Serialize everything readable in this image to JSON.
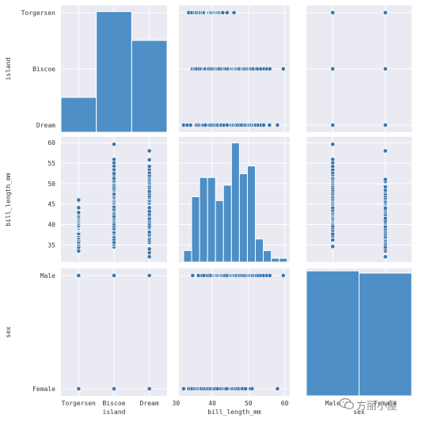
{
  "chart_data": {
    "type": "pairplot",
    "variables": [
      "island",
      "bill_length_mm",
      "sex"
    ],
    "categories": {
      "island": [
        "Torgersen",
        "Biscoe",
        "Dream"
      ],
      "sex": [
        "Male",
        "Female"
      ]
    },
    "axis_labels": {
      "island": "island",
      "bill_length_mm": "bill_length_mm",
      "sex": "sex"
    },
    "bill_length_ticks": [
      35,
      40,
      45,
      50,
      55,
      60
    ],
    "bill_length_x_ticks": [
      30,
      40,
      50,
      60
    ],
    "bill_length_range": [
      30.8,
      61.4
    ],
    "colors": {
      "point": "#3a75ad",
      "bar": "#4d8fc6",
      "bar_edge": "#ffffff",
      "panel_bg": "#eaeaf2",
      "grid": "#ffffff",
      "text": "#333333"
    },
    "island_hist": [
      {
        "category": "Torgersen",
        "count": 47
      },
      {
        "category": "Biscoe",
        "count": 163
      },
      {
        "category": "Dream",
        "count": 124
      }
    ],
    "sex_hist": [
      {
        "category": "Male",
        "count": 168
      },
      {
        "category": "Female",
        "count": 165
      }
    ],
    "bill_length_hist": {
      "bin_edges": [
        32.1,
        34.3,
        36.5,
        38.7,
        40.9,
        43.1,
        45.3,
        47.5,
        49.7,
        51.9,
        54.1,
        56.3,
        58.5,
        60.7
      ],
      "counts": [
        3,
        17,
        22,
        22,
        16,
        20,
        31,
        23,
        25,
        6,
        3,
        1,
        1
      ]
    },
    "bill_length_by_island": {
      "Torgersen": [
        33.5,
        34.4,
        35.1,
        35.5,
        35.7,
        36.2,
        36.6,
        36.7,
        37.2,
        37.3,
        37.7,
        37.8,
        38.5,
        38.6,
        38.8,
        38.9,
        39.0,
        39.2,
        39.5,
        39.6,
        39.7,
        40.2,
        40.3,
        40.6,
        40.9,
        41.1,
        41.4,
        41.5,
        41.8,
        42.1,
        42.5,
        42.8,
        42.9,
        44.1,
        45.8,
        46.0
      ],
      "Biscoe": [
        34.5,
        35.0,
        35.3,
        35.7,
        36.4,
        37.0,
        37.6,
        37.8,
        38.1,
        38.8,
        39.0,
        39.6,
        40.1,
        40.6,
        41.0,
        41.3,
        41.6,
        42.0,
        42.7,
        43.2,
        43.5,
        43.8,
        44.4,
        45.1,
        45.2,
        45.5,
        45.8,
        46.1,
        46.4,
        46.5,
        46.8,
        47.2,
        47.5,
        48.2,
        48.5,
        48.7,
        49.1,
        49.6,
        50.0,
        50.4,
        50.5,
        50.8,
        51.3,
        52.1,
        52.5,
        53.4,
        54.3,
        55.1,
        55.9,
        59.6
      ],
      "Dream": [
        32.1,
        33.1,
        34.0,
        35.6,
        36.0,
        36.5,
        37.0,
        37.3,
        37.5,
        38.1,
        39.2,
        39.6,
        40.2,
        40.7,
        41.1,
        41.5,
        42.2,
        42.5,
        43.2,
        44.1,
        45.2,
        45.6,
        45.9,
        46.4,
        46.6,
        47.0,
        47.6,
        48.1,
        49.0,
        49.5,
        50.0,
        50.2,
        50.6,
        50.9,
        51.3,
        51.7,
        52.0,
        52.7,
        53.5,
        54.2,
        55.8,
        58.0
      ]
    },
    "bill_length_by_sex": {
      "Male": [
        34.6,
        36.2,
        37.2,
        37.7,
        38.6,
        39.1,
        39.6,
        40.3,
        40.6,
        40.9,
        41.1,
        41.3,
        41.6,
        42.0,
        42.3,
        42.5,
        42.8,
        43.2,
        43.5,
        44.1,
        44.9,
        45.2,
        45.5,
        45.8,
        46.1,
        46.4,
        46.8,
        47.3,
        47.6,
        48.1,
        48.5,
        49.0,
        49.5,
        49.9,
        50.2,
        50.5,
        50.8,
        51.1,
        51.5,
        52.0,
        52.2,
        52.7,
        53.4,
        54.2,
        55.1,
        55.9,
        59.6
      ],
      "Female": [
        32.1,
        33.5,
        34.0,
        34.5,
        35.2,
        35.7,
        36.0,
        36.4,
        36.8,
        37.0,
        37.6,
        38.1,
        38.6,
        39.0,
        39.5,
        40.2,
        40.5,
        40.9,
        41.5,
        42.4,
        42.9,
        43.3,
        43.6,
        44.0,
        45.1,
        45.4,
        45.7,
        46.2,
        46.5,
        47.0,
        47.5,
        48.1,
        48.4,
        49.2,
        50.5,
        51.0,
        58.0
      ]
    },
    "island_sex_combos": [
      [
        "Torgersen",
        "Male"
      ],
      [
        "Torgersen",
        "Female"
      ],
      [
        "Biscoe",
        "Male"
      ],
      [
        "Biscoe",
        "Female"
      ],
      [
        "Dream",
        "Male"
      ],
      [
        "Dream",
        "Female"
      ]
    ]
  },
  "watermark": {
    "text": "方丽小屋",
    "icon": "wechat-icon"
  }
}
